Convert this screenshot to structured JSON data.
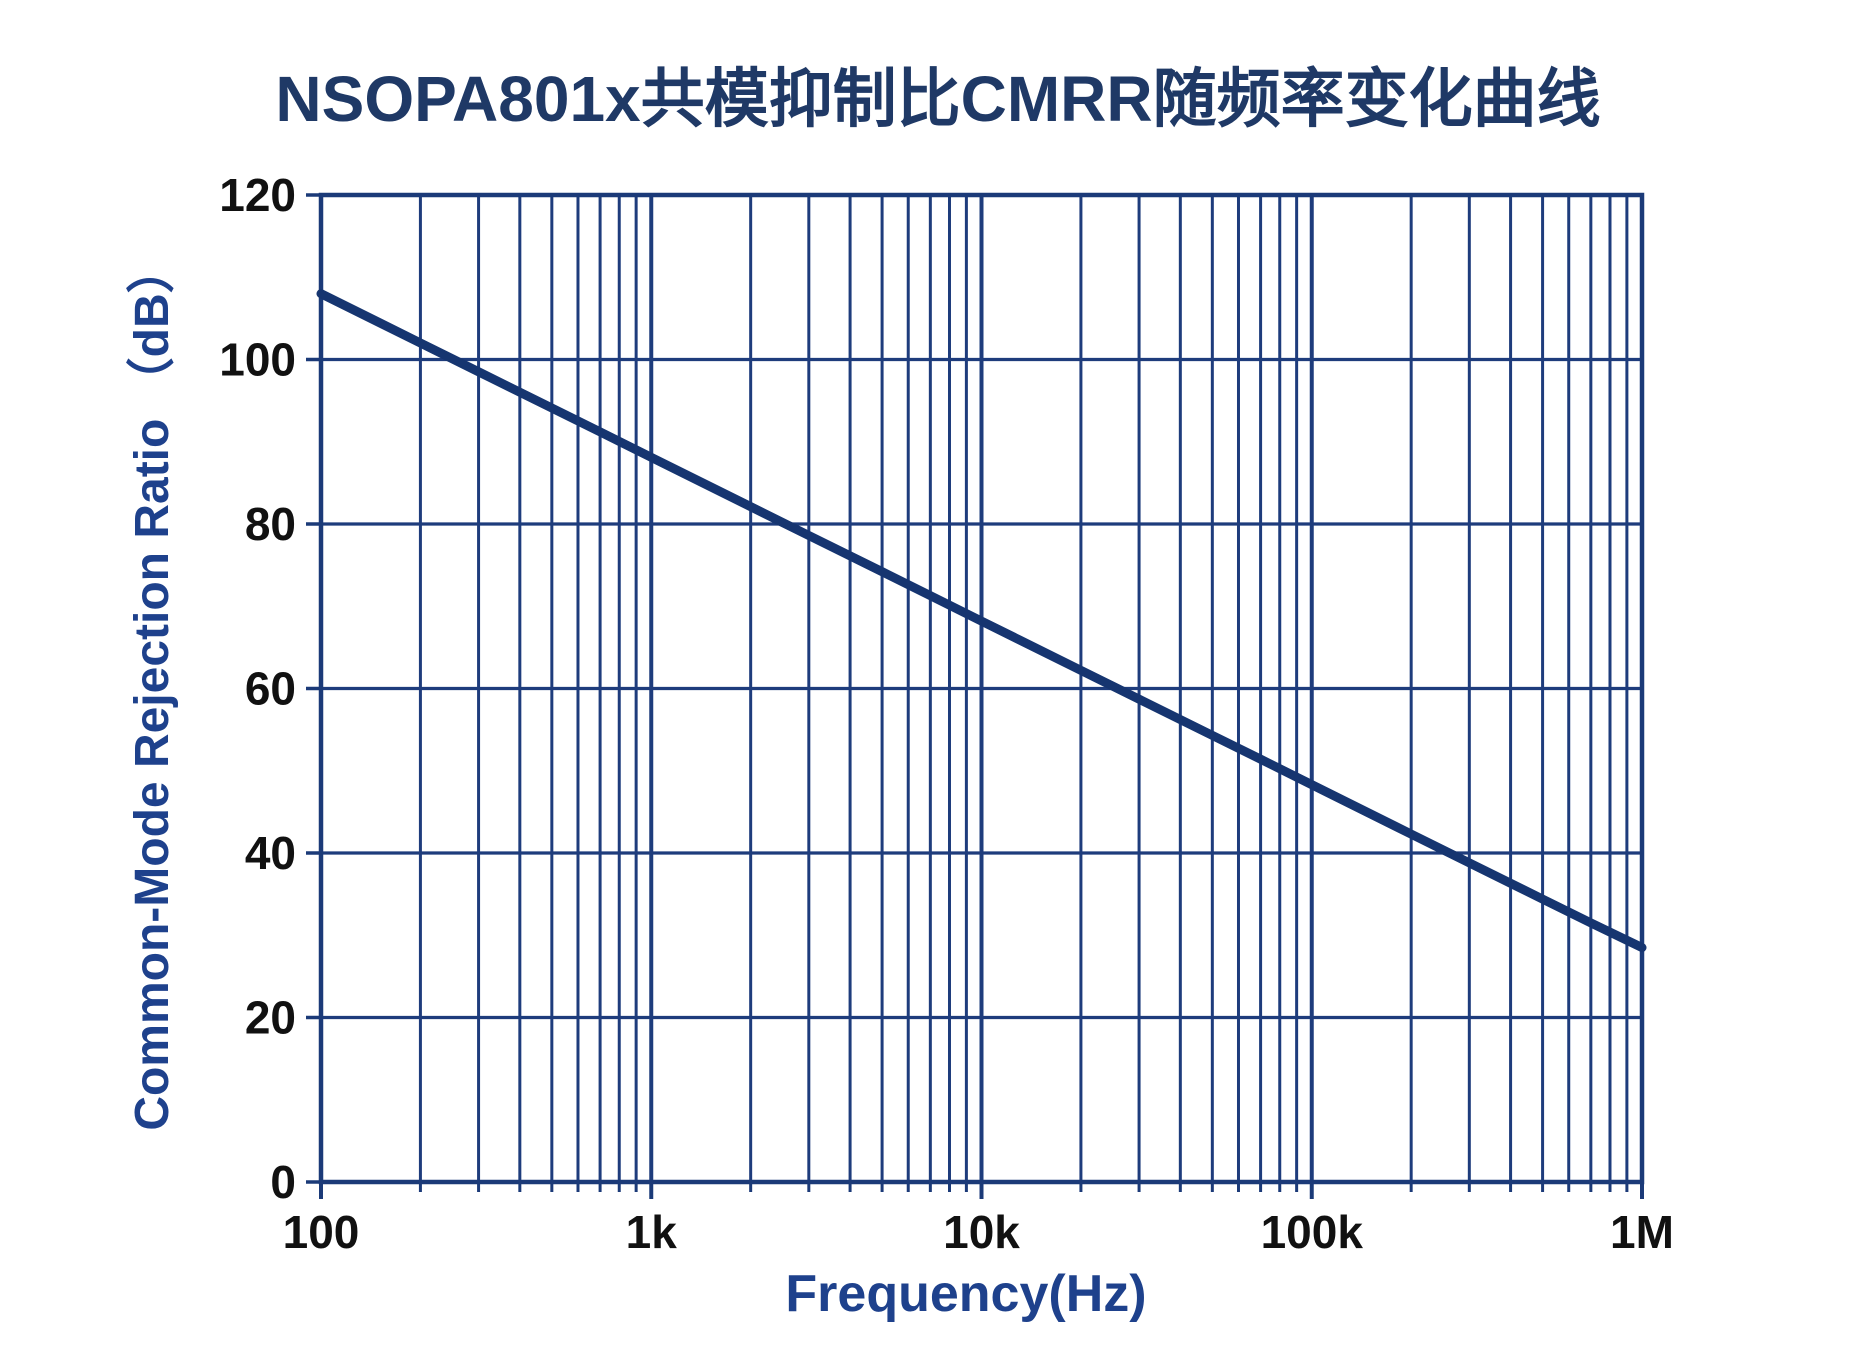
{
  "page": {
    "background": "#ffffff"
  },
  "title": {
    "text": "NSOPA801x共模抑制比CMRR随频率变化曲线",
    "color": "#1f3966"
  },
  "chart_data": {
    "type": "line",
    "title": "NSOPA801x共模抑制比CMRR随频率变化曲线",
    "xlabel": "Frequency(Hz)",
    "ylabel": "Common-Mode Rejection Ratio （dB）",
    "x_scale": "log",
    "xlim": [
      100,
      1000000
    ],
    "ylim": [
      0,
      120
    ],
    "x_ticks": [
      {
        "value": 100,
        "label": "100"
      },
      {
        "value": 1000,
        "label": "1k"
      },
      {
        "value": 10000,
        "label": "10k"
      },
      {
        "value": 100000,
        "label": "100k"
      },
      {
        "value": 1000000,
        "label": "1M"
      }
    ],
    "y_ticks": [
      {
        "value": 0,
        "label": "0"
      },
      {
        "value": 20,
        "label": "20"
      },
      {
        "value": 40,
        "label": "40"
      },
      {
        "value": 60,
        "label": "60"
      },
      {
        "value": 80,
        "label": "80"
      },
      {
        "value": 100,
        "label": "100"
      },
      {
        "value": 120,
        "label": "120"
      }
    ],
    "grid": {
      "horizontal": "major-only",
      "vertical": "log-with-minors",
      "legend": "none"
    },
    "series": [
      {
        "name": "CMRR",
        "points": [
          [
            100,
            108
          ],
          [
            200,
            102
          ],
          [
            300,
            98.5
          ],
          [
            500,
            94.1
          ],
          [
            700,
            91.2
          ],
          [
            1000,
            88.1
          ],
          [
            2000,
            82.1
          ],
          [
            3000,
            78.6
          ],
          [
            5000,
            74.2
          ],
          [
            7000,
            71.3
          ],
          [
            10000,
            68.2
          ],
          [
            20000,
            62.2
          ],
          [
            30000,
            58.7
          ],
          [
            50000,
            54.3
          ],
          [
            70000,
            51.4
          ],
          [
            100000,
            48.3
          ],
          [
            200000,
            42.3
          ],
          [
            300000,
            38.8
          ],
          [
            500000,
            34.4
          ],
          [
            700000,
            31.5
          ],
          [
            1000000,
            28.5
          ]
        ]
      }
    ],
    "colors": {
      "title": "#1f3966",
      "axis_label": "#1e418c",
      "grid": "#1e3c7c",
      "frame": "#1b3a78",
      "curve": "#163570",
      "tick_label": "#111111"
    }
  }
}
